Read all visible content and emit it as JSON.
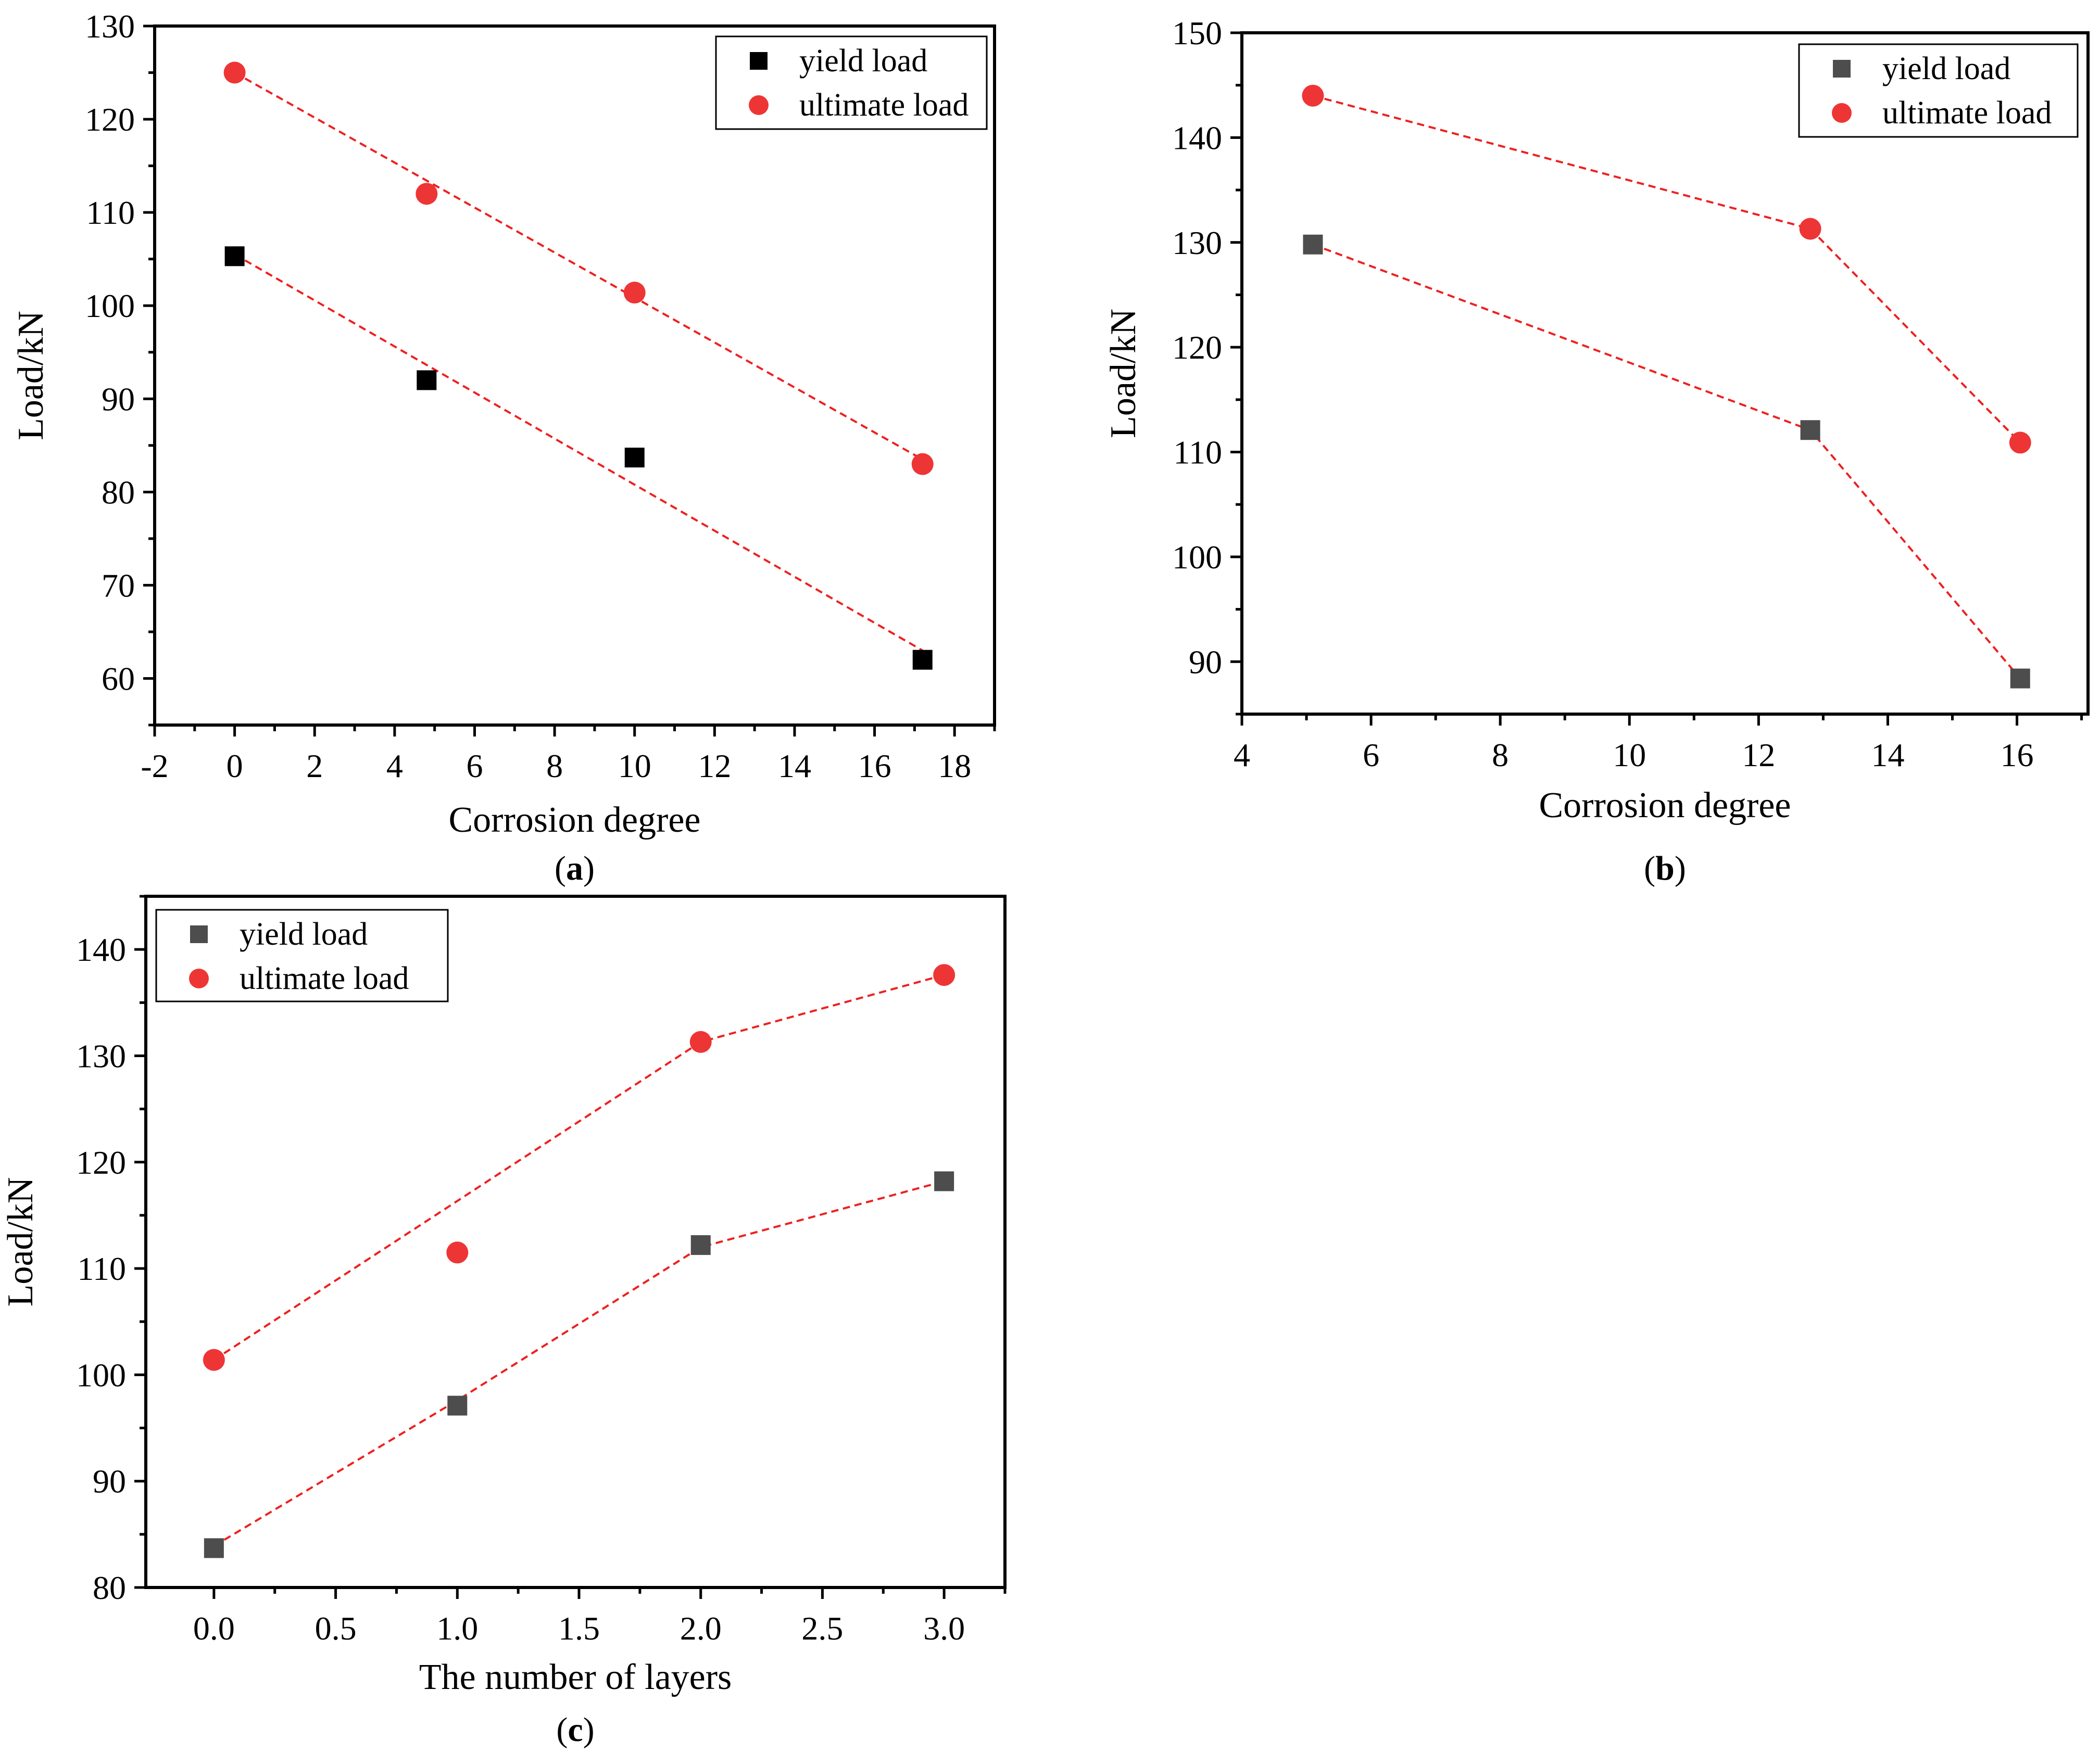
{
  "colors": {
    "yield_marker_a": "#000000",
    "yield_marker": "#4d4d4d",
    "ultimate_marker": "#ee3535",
    "trend_line": "#ee2020",
    "axis": "#000000"
  },
  "chart_data": [
    {
      "id": "a",
      "type": "scatter",
      "caption_open": "(",
      "caption_letter": "a",
      "caption_close": ")",
      "xlabel": "Corrosion degree",
      "ylabel": "Load/kN",
      "xlim": [
        -2,
        19
      ],
      "ylim": [
        55,
        130
      ],
      "xticks": [
        -2,
        0,
        2,
        4,
        6,
        8,
        10,
        12,
        14,
        16,
        18
      ],
      "yticks": [
        60,
        70,
        80,
        90,
        100,
        110,
        120,
        130
      ],
      "legend_position": "top-right",
      "series": [
        {
          "name": "yield load",
          "marker": "square",
          "color_key": "yield_marker_a",
          "x": [
            0,
            4.8,
            10,
            17.2
          ],
          "y": [
            105.3,
            92,
            83.7,
            62
          ],
          "trend": "linear-fit",
          "trend_x": [
            0,
            17.2
          ],
          "trend_y": [
            105.5,
            63
          ]
        },
        {
          "name": "ultimate load",
          "marker": "circle",
          "color_key": "ultimate_marker",
          "x": [
            0,
            4.8,
            10,
            17.2
          ],
          "y": [
            125,
            112,
            101.4,
            83
          ],
          "trend": "linear-fit",
          "trend_x": [
            0,
            17.2
          ],
          "trend_y": [
            125,
            83.5
          ]
        }
      ]
    },
    {
      "id": "b",
      "type": "line",
      "caption_open": "(",
      "caption_letter": "b",
      "caption_close": ")",
      "xlabel": "Corrosion degree",
      "ylabel": "Load/kN",
      "xlim": [
        4,
        17.1
      ],
      "ylim": [
        85,
        150
      ],
      "xticks": [
        4,
        6,
        8,
        10,
        12,
        14,
        16
      ],
      "yticks": [
        90,
        100,
        110,
        120,
        130,
        140,
        150
      ],
      "legend_position": "top-right",
      "series": [
        {
          "name": "yield load",
          "marker": "square",
          "color_key": "yield_marker",
          "x": [
            5.1,
            12.8,
            16.05
          ],
          "y": [
            129.8,
            112.1,
            88.4
          ],
          "trend": "connect"
        },
        {
          "name": "ultimate load",
          "marker": "circle",
          "color_key": "ultimate_marker",
          "x": [
            5.1,
            12.8,
            16.05
          ],
          "y": [
            144,
            131.3,
            110.9
          ],
          "trend": "connect"
        }
      ]
    },
    {
      "id": "c",
      "type": "line",
      "caption_open": "(",
      "caption_letter": "c",
      "caption_close": ")",
      "xlabel": "The number of layers",
      "ylabel": "Load/kN",
      "xlim": [
        -0.28,
        3.25
      ],
      "ylim": [
        80,
        145
      ],
      "xticks": [
        0.0,
        0.5,
        1.0,
        1.5,
        2.0,
        2.5,
        3.0
      ],
      "xtick_labels": [
        "0.0",
        "0.5",
        "1.0",
        "1.5",
        "2.0",
        "2.5",
        "3.0"
      ],
      "yticks": [
        80,
        90,
        100,
        110,
        120,
        130,
        140
      ],
      "legend_position": "top-left",
      "series": [
        {
          "name": "yield load",
          "marker": "square",
          "color_key": "yield_marker",
          "x": [
            0,
            1,
            2,
            3
          ],
          "y": [
            83.7,
            97.1,
            112.2,
            118.2
          ],
          "trend": "custom",
          "trend_x": [
            0,
            1,
            2,
            3
          ],
          "trend_y": [
            83.9,
            97.6,
            112.0,
            118.2
          ]
        },
        {
          "name": "ultimate load",
          "marker": "circle",
          "color_key": "ultimate_marker",
          "x": [
            0,
            1,
            2,
            3
          ],
          "y": [
            101.4,
            111.5,
            131.3,
            137.6
          ],
          "trend": "custom",
          "trend_x": [
            0,
            2,
            3
          ],
          "trend_y": [
            101.4,
            131.3,
            137.6
          ]
        }
      ]
    }
  ]
}
